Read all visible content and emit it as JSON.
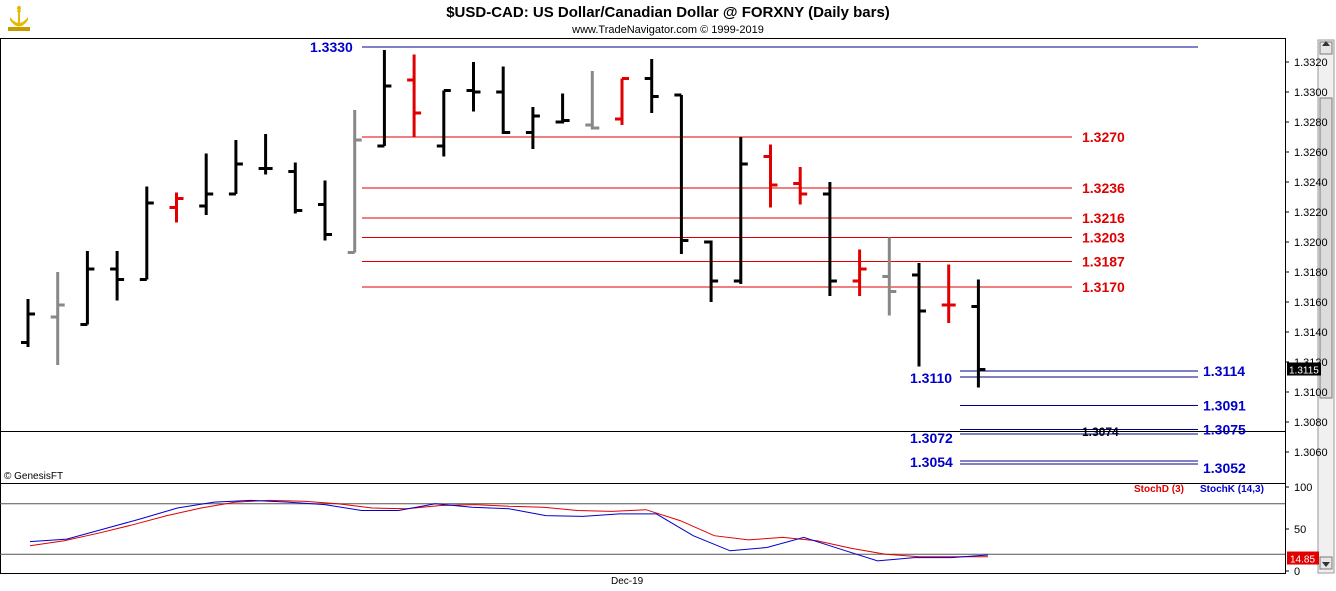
{
  "header": {
    "title": "$USD-CAD:  US Dollar/Canadian Dollar @ FORXNY  (Daily bars)",
    "subtitle": "www.TradeNavigator.com © 1999-2019"
  },
  "watermark": "© GenesisFT",
  "colors": {
    "up_bar": "#000000",
    "down_bar": "#e00000",
    "neutral_bar": "#888888",
    "support_line": "#00008b",
    "resistance_line": "#e00000",
    "stoch_d": "#e00000",
    "stoch_k": "#0000cc",
    "label_blue": "#0000cc",
    "label_red": "#e00000"
  },
  "chart_data": [
    {
      "type": "ohlc",
      "title": "$USD-CAD:  US Dollar/Canadian Dollar @ FORXNY  (Daily bars)",
      "ylim": [
        1.3047,
        1.3338
      ],
      "y_ticks": [
        "1.3320",
        "1.3300",
        "1.3280",
        "1.3260",
        "1.3240",
        "1.3220",
        "1.3200",
        "1.3180",
        "1.3160",
        "1.3140",
        "1.3120",
        "1.3100",
        "1.3080",
        "1.3060"
      ],
      "x_tick_labels": [
        "Dec-19"
      ],
      "last_price_label": "1.3115",
      "bars": [
        {
          "o": 1.3133,
          "h": 1.3162,
          "l": 1.313,
          "c": 1.3152,
          "color": "black"
        },
        {
          "o": 1.315,
          "h": 1.318,
          "l": 1.3118,
          "c": 1.3158,
          "color": "gray"
        },
        {
          "o": 1.3145,
          "h": 1.3194,
          "l": 1.3145,
          "c": 1.3182,
          "color": "black"
        },
        {
          "o": 1.3182,
          "h": 1.3194,
          "l": 1.3161,
          "c": 1.3175,
          "color": "black"
        },
        {
          "o": 1.3175,
          "h": 1.3237,
          "l": 1.3175,
          "c": 1.3226,
          "color": "black"
        },
        {
          "o": 1.3223,
          "h": 1.3233,
          "l": 1.3213,
          "c": 1.3229,
          "color": "red"
        },
        {
          "o": 1.3224,
          "h": 1.3259,
          "l": 1.3218,
          "c": 1.3232,
          "color": "black"
        },
        {
          "o": 1.3232,
          "h": 1.3268,
          "l": 1.3232,
          "c": 1.3252,
          "color": "black"
        },
        {
          "o": 1.3249,
          "h": 1.3272,
          "l": 1.3245,
          "c": 1.3249,
          "color": "black"
        },
        {
          "o": 1.3247,
          "h": 1.3253,
          "l": 1.3219,
          "c": 1.3221,
          "color": "black"
        },
        {
          "o": 1.3225,
          "h": 1.3241,
          "l": 1.3201,
          "c": 1.3205,
          "color": "black"
        },
        {
          "o": 1.3193,
          "h": 1.3288,
          "l": 1.3193,
          "c": 1.3268,
          "color": "gray"
        },
        {
          "o": 1.3264,
          "h": 1.3328,
          "l": 1.3264,
          "c": 1.3304,
          "color": "black"
        },
        {
          "o": 1.3308,
          "h": 1.3325,
          "l": 1.327,
          "c": 1.3286,
          "color": "red"
        },
        {
          "o": 1.3264,
          "h": 1.3301,
          "l": 1.3257,
          "c": 1.3301,
          "color": "black"
        },
        {
          "o": 1.3301,
          "h": 1.332,
          "l": 1.3287,
          "c": 1.33,
          "color": "black"
        },
        {
          "o": 1.33,
          "h": 1.3317,
          "l": 1.3272,
          "c": 1.3273,
          "color": "black"
        },
        {
          "o": 1.3273,
          "h": 1.329,
          "l": 1.3262,
          "c": 1.3284,
          "color": "black"
        },
        {
          "o": 1.328,
          "h": 1.3299,
          "l": 1.3279,
          "c": 1.3281,
          "color": "black"
        },
        {
          "o": 1.3278,
          "h": 1.3314,
          "l": 1.3275,
          "c": 1.3276,
          "color": "gray"
        },
        {
          "o": 1.3282,
          "h": 1.3309,
          "l": 1.3278,
          "c": 1.3309,
          "color": "red"
        },
        {
          "o": 1.3309,
          "h": 1.3322,
          "l": 1.3286,
          "c": 1.3297,
          "color": "black"
        },
        {
          "o": 1.3298,
          "h": 1.3298,
          "l": 1.3192,
          "c": 1.3201,
          "color": "black"
        },
        {
          "o": 1.32,
          "h": 1.3201,
          "l": 1.316,
          "c": 1.3174,
          "color": "black"
        },
        {
          "o": 1.3174,
          "h": 1.327,
          "l": 1.3172,
          "c": 1.3252,
          "color": "black"
        },
        {
          "o": 1.3257,
          "h": 1.3265,
          "l": 1.3223,
          "c": 1.3238,
          "color": "red"
        },
        {
          "o": 1.3239,
          "h": 1.325,
          "l": 1.3225,
          "c": 1.3232,
          "color": "red"
        },
        {
          "o": 1.3232,
          "h": 1.324,
          "l": 1.3164,
          "c": 1.3174,
          "color": "black"
        },
        {
          "o": 1.3174,
          "h": 1.3195,
          "l": 1.3164,
          "c": 1.3182,
          "color": "red"
        },
        {
          "o": 1.3177,
          "h": 1.3203,
          "l": 1.3151,
          "c": 1.3167,
          "color": "gray"
        },
        {
          "o": 1.3178,
          "h": 1.3186,
          "l": 1.3117,
          "c": 1.3154,
          "color": "black"
        },
        {
          "o": 1.3158,
          "h": 1.3185,
          "l": 1.3146,
          "c": 1.3158,
          "color": "red"
        },
        {
          "o": 1.3157,
          "h": 1.3175,
          "l": 1.3103,
          "c": 1.3115,
          "color": "black"
        }
      ],
      "levels": [
        {
          "label": "1.3330",
          "value": 1.333,
          "color": "blue",
          "side": "left"
        },
        {
          "label": "1.3270",
          "value": 1.327,
          "color": "red",
          "side": "right"
        },
        {
          "label": "1.3236",
          "value": 1.3236,
          "color": "red",
          "side": "right"
        },
        {
          "label": "1.3216",
          "value": 1.3216,
          "color": "red",
          "side": "right"
        },
        {
          "label": "1.3203",
          "value": 1.3203,
          "color": "red",
          "side": "right"
        },
        {
          "label": "1.3187",
          "value": 1.3187,
          "color": "red",
          "side": "right"
        },
        {
          "label": "1.3170",
          "value": 1.317,
          "color": "red",
          "side": "right"
        },
        {
          "label": "1.3114",
          "value": 1.3114,
          "color": "blue",
          "side": "right"
        },
        {
          "label": "1.3110",
          "value": 1.311,
          "color": "blue",
          "side": "left"
        },
        {
          "label": "1.3091",
          "value": 1.3091,
          "color": "blue",
          "side": "right"
        },
        {
          "label": "1.3075",
          "value": 1.3075,
          "color": "blue",
          "side": "right"
        },
        {
          "label": "1.3074",
          "value": 1.3074,
          "color": "black",
          "side": "mid"
        },
        {
          "label": "1.3072",
          "value": 1.3072,
          "color": "blue",
          "side": "left"
        },
        {
          "label": "1.3054",
          "value": 1.3054,
          "color": "blue",
          "side": "left"
        },
        {
          "label": "1.3052",
          "value": 1.3052,
          "color": "blue",
          "side": "right"
        }
      ]
    },
    {
      "type": "line",
      "title": "",
      "ylim": [
        0,
        100
      ],
      "y_ticks": [
        "100",
        "50",
        "0"
      ],
      "last_value_label": "14.85",
      "reference_lines": [
        80,
        20
      ],
      "series": [
        {
          "name": "StochD (3)",
          "color": "red",
          "values": [
            30,
            36,
            45,
            55,
            66,
            75,
            82,
            84,
            83,
            80,
            75,
            74,
            78,
            79,
            77,
            76,
            72,
            71,
            73,
            60,
            42,
            37,
            40,
            36,
            27,
            20,
            17,
            17,
            17
          ]
        },
        {
          "name": "StochK (14,3)",
          "color": "blue",
          "values": [
            35,
            38,
            50,
            62,
            75,
            82,
            84,
            82,
            79,
            72,
            72,
            80,
            76,
            74,
            66,
            65,
            68,
            68,
            42,
            24,
            28,
            40,
            26,
            12,
            16,
            16,
            19
          ]
        }
      ]
    }
  ]
}
